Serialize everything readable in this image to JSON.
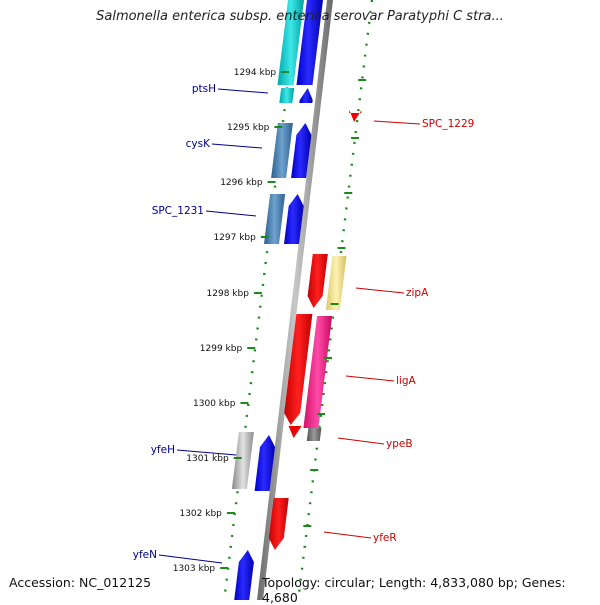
{
  "title": "Salmonella enterica subsp. enterica serovar Paratyphi C stra...",
  "footer": {
    "accession": "Accession: NC_012125",
    "summary": "Topology: circular; Length: 4,833,080 bp; Genes: 4,680"
  },
  "colors": {
    "backbone": "#8a8a8a",
    "tick": "#1d8a1d",
    "left_label": "#00008b",
    "right_label": "#cc0000",
    "blue_gene": "#0a0af0",
    "red_gene": "#ee0000"
  },
  "kbp_ticks": [
    "1294 kbp",
    "1295 kbp",
    "1296 kbp",
    "1297 kbp",
    "1298 kbp",
    "1299 kbp",
    "1300 kbp",
    "1301 kbp",
    "1302 kbp",
    "1303 kbp"
  ],
  "gene_labels_left": [
    "ptsH",
    "cysK",
    "SPC_1231",
    "yfeH",
    "yfeN"
  ],
  "gene_labels_right": [
    "SPC_1229",
    "zipA",
    "ligA",
    "ypeB",
    "yfeR"
  ]
}
